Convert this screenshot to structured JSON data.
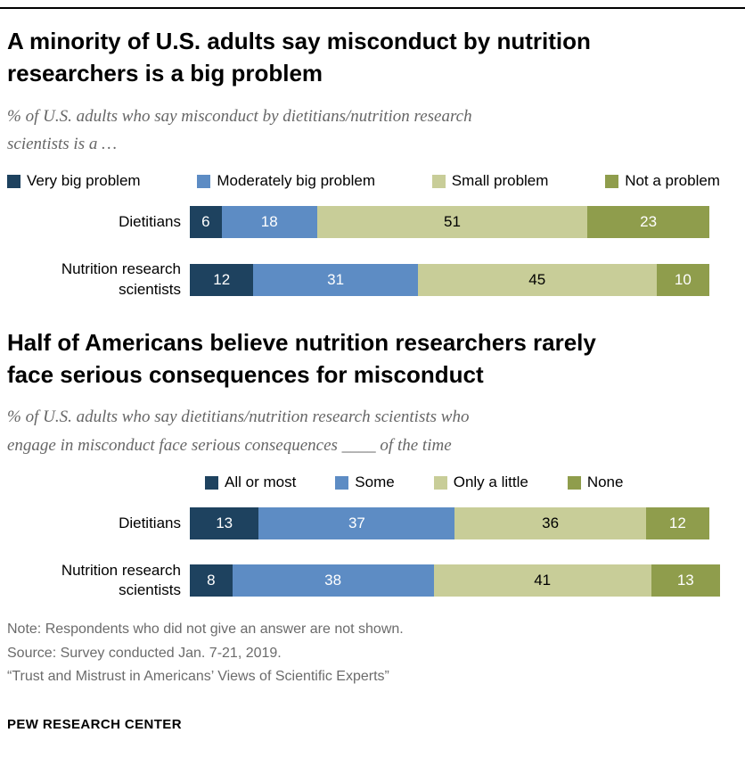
{
  "page": {
    "notes": [
      "Note: Respondents who did not give an answer are not shown.",
      "Source: Survey conducted Jan. 7-21, 2019.",
      "“Trust and Mistrust in Americans’ Views of Scientific Experts”"
    ],
    "brand": "PEW RESEARCH CENTER"
  },
  "colors": {
    "very_dark_blue": "#1e425f",
    "medium_blue": "#5d8cc4",
    "light_olive": "#c8cd98",
    "olive": "#8f9d4c"
  },
  "chart_data": [
    {
      "type": "bar",
      "stacked": true,
      "orientation": "horizontal",
      "title": "A minority of U.S. adults say misconduct by nutrition\nresearchers is a big problem",
      "subtitle": "% of U.S. adults who say misconduct by dietitians/nutrition research\nscientists is a …",
      "categories": [
        "Dietitians",
        "Nutrition research\nscientists"
      ],
      "series": [
        {
          "name": "Very big problem",
          "color": "#1e425f",
          "label_color": "#ffffff",
          "values": [
            6,
            12
          ]
        },
        {
          "name": "Moderately big problem",
          "color": "#5d8cc4",
          "label_color": "#ffffff",
          "values": [
            18,
            31
          ]
        },
        {
          "name": "Small problem",
          "color": "#c8cd98",
          "label_color": "#000000",
          "values": [
            51,
            45
          ]
        },
        {
          "name": "Not a problem",
          "color": "#8f9d4c",
          "label_color": "#ffffff",
          "values": [
            23,
            10
          ]
        }
      ],
      "xlim": [
        0,
        100
      ],
      "grid": false,
      "legend_position": "top",
      "legend_layout": "spread"
    },
    {
      "type": "bar",
      "stacked": true,
      "orientation": "horizontal",
      "title": "Half of Americans believe nutrition researchers rarely\nface serious consequences for misconduct",
      "subtitle": "% of U.S. adults who say dietitians/nutrition research scientists who\nengage in misconduct face serious consequences ____ of the time",
      "categories": [
        "Dietitians",
        "Nutrition research\nscientists"
      ],
      "series": [
        {
          "name": "All or most",
          "color": "#1e425f",
          "label_color": "#ffffff",
          "values": [
            13,
            8
          ]
        },
        {
          "name": "Some",
          "color": "#5d8cc4",
          "label_color": "#ffffff",
          "values": [
            37,
            38
          ]
        },
        {
          "name": "Only a little",
          "color": "#c8cd98",
          "label_color": "#000000",
          "values": [
            36,
            41
          ]
        },
        {
          "name": "None",
          "color": "#8f9d4c",
          "label_color": "#ffffff",
          "values": [
            12,
            13
          ]
        }
      ],
      "xlim": [
        0,
        100
      ],
      "grid": false,
      "legend_position": "top",
      "legend_layout": "indented"
    }
  ]
}
